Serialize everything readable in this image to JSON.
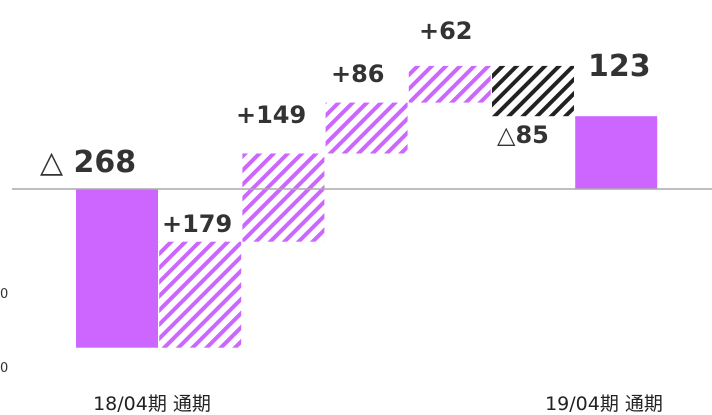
{
  "chart_data": {
    "type": "bar",
    "subtype": "waterfall",
    "title": "",
    "xlabel": "",
    "ylabel": "",
    "baseline_value": 0,
    "ylim": [
      -268,
      180
    ],
    "bars": [
      {
        "kind": "total",
        "start": 0,
        "end": -268,
        "label": "△ 268",
        "category": "18/04期 通期",
        "fill": "solid-purple"
      },
      {
        "kind": "delta",
        "start": -268,
        "end": -89,
        "label": "+179",
        "category": "",
        "fill": "hatch-purple"
      },
      {
        "kind": "delta",
        "start": -89,
        "end": 60,
        "label": "+149",
        "category": "",
        "fill": "hatch-purple"
      },
      {
        "kind": "delta",
        "start": 60,
        "end": 146,
        "label": "+86",
        "category": "",
        "fill": "hatch-purple"
      },
      {
        "kind": "delta",
        "start": 146,
        "end": 208,
        "label": "+62",
        "category": "",
        "fill": "hatch-purple"
      },
      {
        "kind": "delta",
        "start": 208,
        "end": 123,
        "label": "△85",
        "category": "",
        "fill": "hatch-black"
      },
      {
        "kind": "total",
        "start": 0,
        "end": 123,
        "label": "123",
        "category": "19/04期 通期",
        "fill": "solid-purple"
      }
    ],
    "partial_axis_ticks": [
      "0",
      "0"
    ],
    "grid": false,
    "legend": "none",
    "colors": {
      "solid_purple": "#cc66ff",
      "hatch_purple": "#cc66ff",
      "hatch_black": "#222222",
      "axis": "#aaaaaa",
      "text": "#333333"
    }
  }
}
